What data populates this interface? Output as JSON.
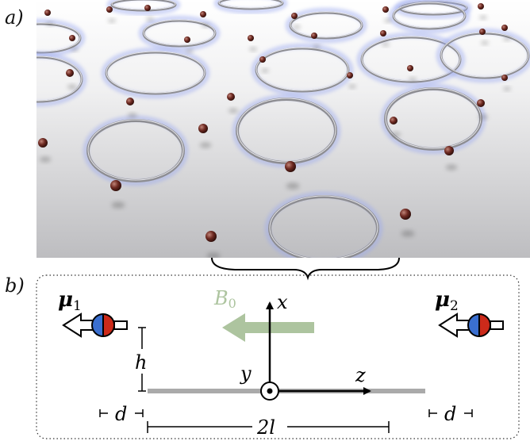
{
  "panel_a": {
    "label": "a)"
  },
  "panel_b": {
    "label": "b)",
    "field_label": "B",
    "field_sub": "0",
    "axis_x": "x",
    "axis_y": "y",
    "axis_z": "z",
    "height_label": "h",
    "gap_left": "d",
    "gap_right": "d",
    "length_label": "2l",
    "dipole1_symbol": "μ",
    "dipole1_sub": "1",
    "dipole2_symbol": "μ",
    "dipole2_sub": "2"
  },
  "colors": {
    "field_arrow": "#adc49f",
    "wire": "#aaaaaa",
    "dipole_blue": "#3a6fd0",
    "dipole_red": "#cc2a1a",
    "atom": "#6e2a22"
  }
}
